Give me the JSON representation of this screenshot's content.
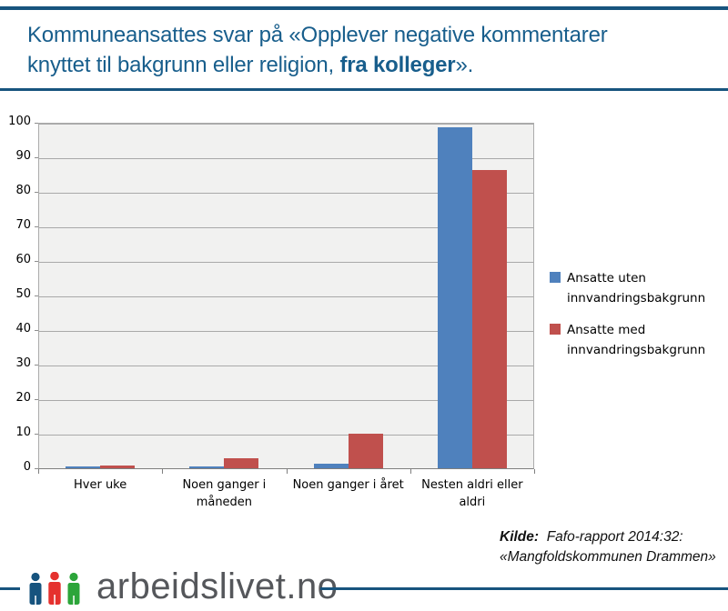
{
  "header": {
    "title_line1": "Kommuneansattes svar på «Opplever negative kommentarer",
    "title_line2_prefix": "knyttet til bakgrunn eller religion, ",
    "title_line2_bold": "fra kolleger",
    "title_line2_suffix": "».",
    "accent_color": "#17547E"
  },
  "chart_data": {
    "type": "bar",
    "title": "",
    "xlabel": "",
    "ylabel": "",
    "categories": [
      "Hver uke",
      "Noen ganger i måneden",
      "Noen ganger i året",
      "Nesten aldri eller aldri"
    ],
    "series": [
      {
        "name": "Ansatte uten innvandringsbakgrunn",
        "color": "#4F81BD",
        "values": [
          0.5,
          0.5,
          1.2,
          98.6
        ]
      },
      {
        "name": "Ansatte med innvandringsbakgrunn",
        "color": "#C0504D",
        "values": [
          0.8,
          2.8,
          10,
          86.4
        ]
      }
    ],
    "ylim": [
      0,
      100
    ],
    "ytick_step": 10,
    "grid": true,
    "legend_position": "right",
    "plot_background": "#F1F1F0",
    "gridline_color": "#A9A9A9"
  },
  "source": {
    "label": "Kilde:",
    "line1": "Fafo-rapport 2014:32:",
    "line2": "«Mangfoldskommunen Drammen»"
  },
  "footer": {
    "logo_text": "arbeidslivet.no",
    "logo_colors": {
      "person1": "#16537E",
      "person2": "#E5312E",
      "person3": "#2CA53A"
    }
  }
}
